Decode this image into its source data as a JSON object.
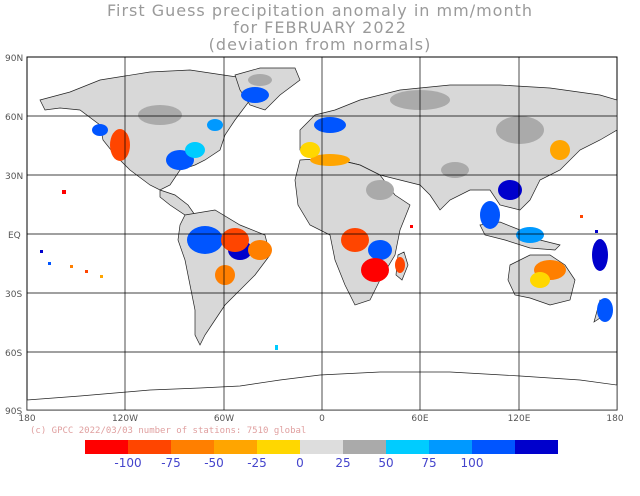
{
  "title": {
    "line1": "First Guess precipitation anomaly in mm/month",
    "line2": "for FEBRUARY 2022",
    "line3": "(deviation from normals)"
  },
  "credit": "(c) GPCC 2022/03/03 number of stations: 7510 global",
  "map": {
    "lat_labels": [
      "90N",
      "60N",
      "30N",
      "EQ",
      "30S",
      "60S",
      "90S"
    ],
    "lon_labels": [
      "180",
      "120W",
      "60W",
      "0",
      "60E",
      "120E",
      "180"
    ]
  },
  "colorbar": {
    "colors": [
      "#ff0000",
      "#ff4500",
      "#ff7f00",
      "#ffa500",
      "#ffd700",
      "#dddddd",
      "#aaaaaa",
      "#00ccff",
      "#0099ff",
      "#0055ff",
      "#0000cc"
    ],
    "labels": [
      "-100",
      "-75",
      "-50",
      "-25",
      "0",
      "25",
      "50",
      "75",
      "100"
    ]
  }
}
